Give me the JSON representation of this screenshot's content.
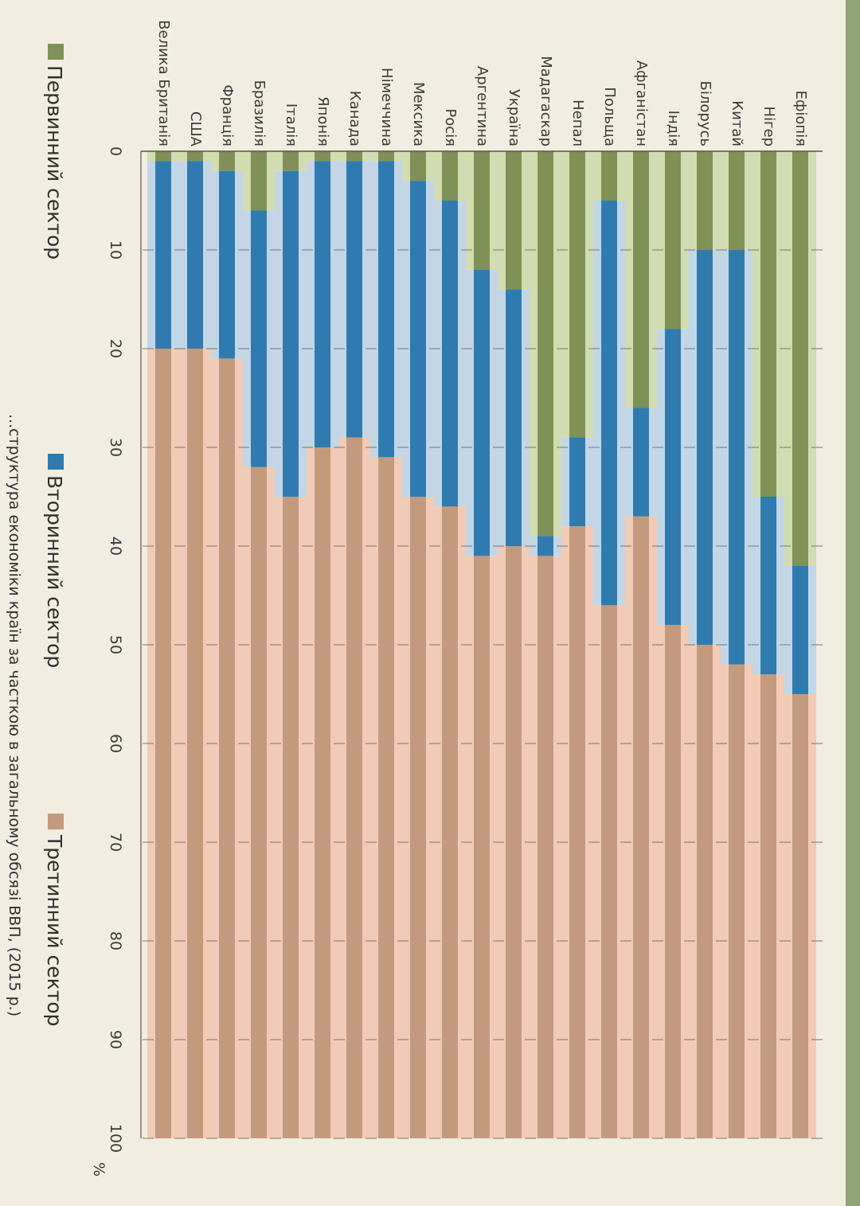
{
  "chart_data": {
    "type": "bar",
    "orientation": "horizontal-stacked-100",
    "categories": [
      "Ефіопія",
      "Нігер",
      "Китай",
      "Білорусь",
      "Індія",
      "Афганістан",
      "Польща",
      "Непал",
      "Мадагаскар",
      "Україна",
      "Аргентина",
      "Росія",
      "Мексика",
      "Німеччина",
      "Канада",
      "Японія",
      "Італія",
      "Бразилія",
      "Франція",
      "США",
      "Велика Британія"
    ],
    "series": [
      {
        "name": "Первинний сектор",
        "color": "#7f9156",
        "values": [
          42,
          35,
          10,
          10,
          18,
          26,
          5,
          29,
          39,
          14,
          12,
          5,
          3,
          1,
          1,
          1,
          2,
          6,
          2,
          1,
          1
        ]
      },
      {
        "name": "Вторинний сектор",
        "color": "#2f7bb0",
        "values": [
          13,
          18,
          42,
          40,
          30,
          11,
          41,
          9,
          2,
          26,
          29,
          31,
          32,
          30,
          28,
          29,
          33,
          26,
          19,
          19,
          19
        ]
      },
      {
        "name": "Третинний сектор",
        "color": "#c49a7f",
        "values": [
          45,
          47,
          48,
          50,
          52,
          63,
          54,
          62,
          59,
          60,
          59,
          64,
          65,
          69,
          71,
          70,
          65,
          68,
          79,
          80,
          80
        ]
      }
    ],
    "gap_colors": [
      "#d2dcb0",
      "#c3d6e6",
      "#f0cbb5"
    ],
    "xlim": [
      0,
      100
    ],
    "xticks": [
      "0",
      "10",
      "20",
      "30",
      "40",
      "50",
      "60",
      "70",
      "80",
      "90",
      "100"
    ],
    "x_unit": "%",
    "legend_position": "bottom",
    "caption": "...структура економіки країн за часткою в загальному обсязі ВВП, (2015 р.)"
  },
  "colors": {
    "paper": "#f1ede0",
    "page_edge": "#8fa278",
    "text": "#3a3a3a",
    "grid": "#555555"
  }
}
